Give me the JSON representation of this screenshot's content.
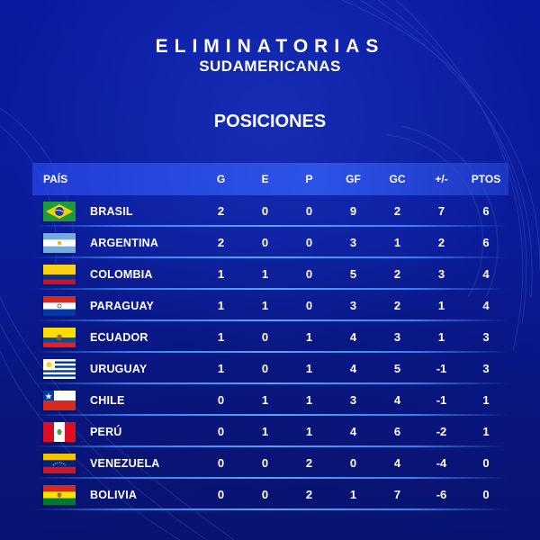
{
  "header": {
    "title_line1": "ELIMINATORIAS",
    "title_line2": "SUDAMERICANAS",
    "subtitle": "POSICIONES"
  },
  "table": {
    "columns": [
      "PAÍS",
      "G",
      "E",
      "P",
      "GF",
      "GC",
      "+/-",
      "PTOS"
    ],
    "rows": [
      {
        "team": "BRASIL",
        "flag": "brazil-flag",
        "g": "2",
        "e": "0",
        "p": "0",
        "gf": "9",
        "gc": "2",
        "dif": "7",
        "pts": "6"
      },
      {
        "team": "ARGENTINA",
        "flag": "argentina-flag",
        "g": "2",
        "e": "0",
        "p": "0",
        "gf": "3",
        "gc": "1",
        "dif": "2",
        "pts": "6"
      },
      {
        "team": "COLOMBIA",
        "flag": "colombia-flag",
        "g": "1",
        "e": "1",
        "p": "0",
        "gf": "5",
        "gc": "2",
        "dif": "3",
        "pts": "4"
      },
      {
        "team": "PARAGUAY",
        "flag": "paraguay-flag",
        "g": "1",
        "e": "1",
        "p": "0",
        "gf": "3",
        "gc": "2",
        "dif": "1",
        "pts": "4"
      },
      {
        "team": "ECUADOR",
        "flag": "ecuador-flag",
        "g": "1",
        "e": "0",
        "p": "1",
        "gf": "4",
        "gc": "3",
        "dif": "1",
        "pts": "3"
      },
      {
        "team": "URUGUAY",
        "flag": "uruguay-flag",
        "g": "1",
        "e": "0",
        "p": "1",
        "gf": "4",
        "gc": "5",
        "dif": "-1",
        "pts": "3"
      },
      {
        "team": "CHILE",
        "flag": "chile-flag",
        "g": "0",
        "e": "1",
        "p": "1",
        "gf": "3",
        "gc": "4",
        "dif": "-1",
        "pts": "1"
      },
      {
        "team": "PERÚ",
        "flag": "peru-flag",
        "g": "0",
        "e": "1",
        "p": "1",
        "gf": "4",
        "gc": "6",
        "dif": "-2",
        "pts": "1"
      },
      {
        "team": "VENEZUELA",
        "flag": "venezuela-flag",
        "g": "0",
        "e": "0",
        "p": "2",
        "gf": "0",
        "gc": "4",
        "dif": "-4",
        "pts": "0"
      },
      {
        "team": "BOLIVIA",
        "flag": "bolivia-flag",
        "g": "0",
        "e": "0",
        "p": "2",
        "gf": "1",
        "gc": "7",
        "dif": "-6",
        "pts": "0"
      }
    ]
  },
  "colors": {
    "background": "#0b1c9a",
    "header_bar": "#2f55e6",
    "row_divider": "#4aa0ff",
    "text": "#ffffff"
  }
}
